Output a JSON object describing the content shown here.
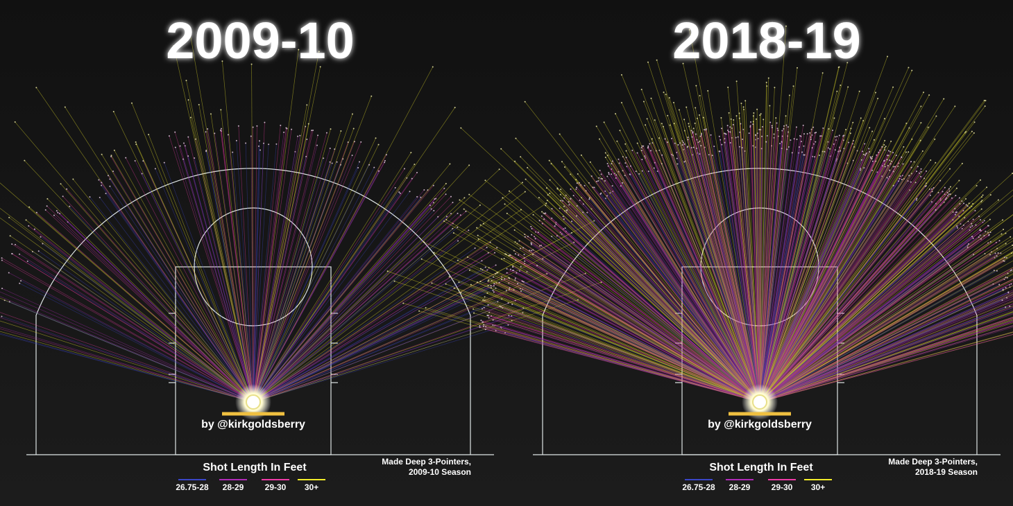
{
  "panels": [
    {
      "title": "2009-10",
      "credit": "by @kirkgoldsberry",
      "legend_title": "Shot Length In Feet",
      "caption": [
        "Made Deep 3-Pointers,",
        "2009-10 Season"
      ],
      "legend": [
        {
          "label": "26.75-28",
          "color": "#3a46c8"
        },
        {
          "label": "28-29",
          "color": "#b02ab8"
        },
        {
          "label": "29-30",
          "color": "#f03aa8"
        },
        {
          "label": "30+",
          "color": "#f4ee2a"
        }
      ]
    },
    {
      "title": "2018-19",
      "credit": "by @kirkgoldsberry",
      "legend_title": "Shot Length In Feet",
      "caption": [
        "Made Deep 3-Pointers,",
        "2018-19 Season"
      ],
      "legend": [
        {
          "label": "26.75-28",
          "color": "#3a46c8"
        },
        {
          "label": "28-29",
          "color": "#b02ab8"
        },
        {
          "label": "29-30",
          "color": "#f03aa8"
        },
        {
          "label": "30+",
          "color": "#f4ee2a"
        }
      ]
    }
  ]
}
